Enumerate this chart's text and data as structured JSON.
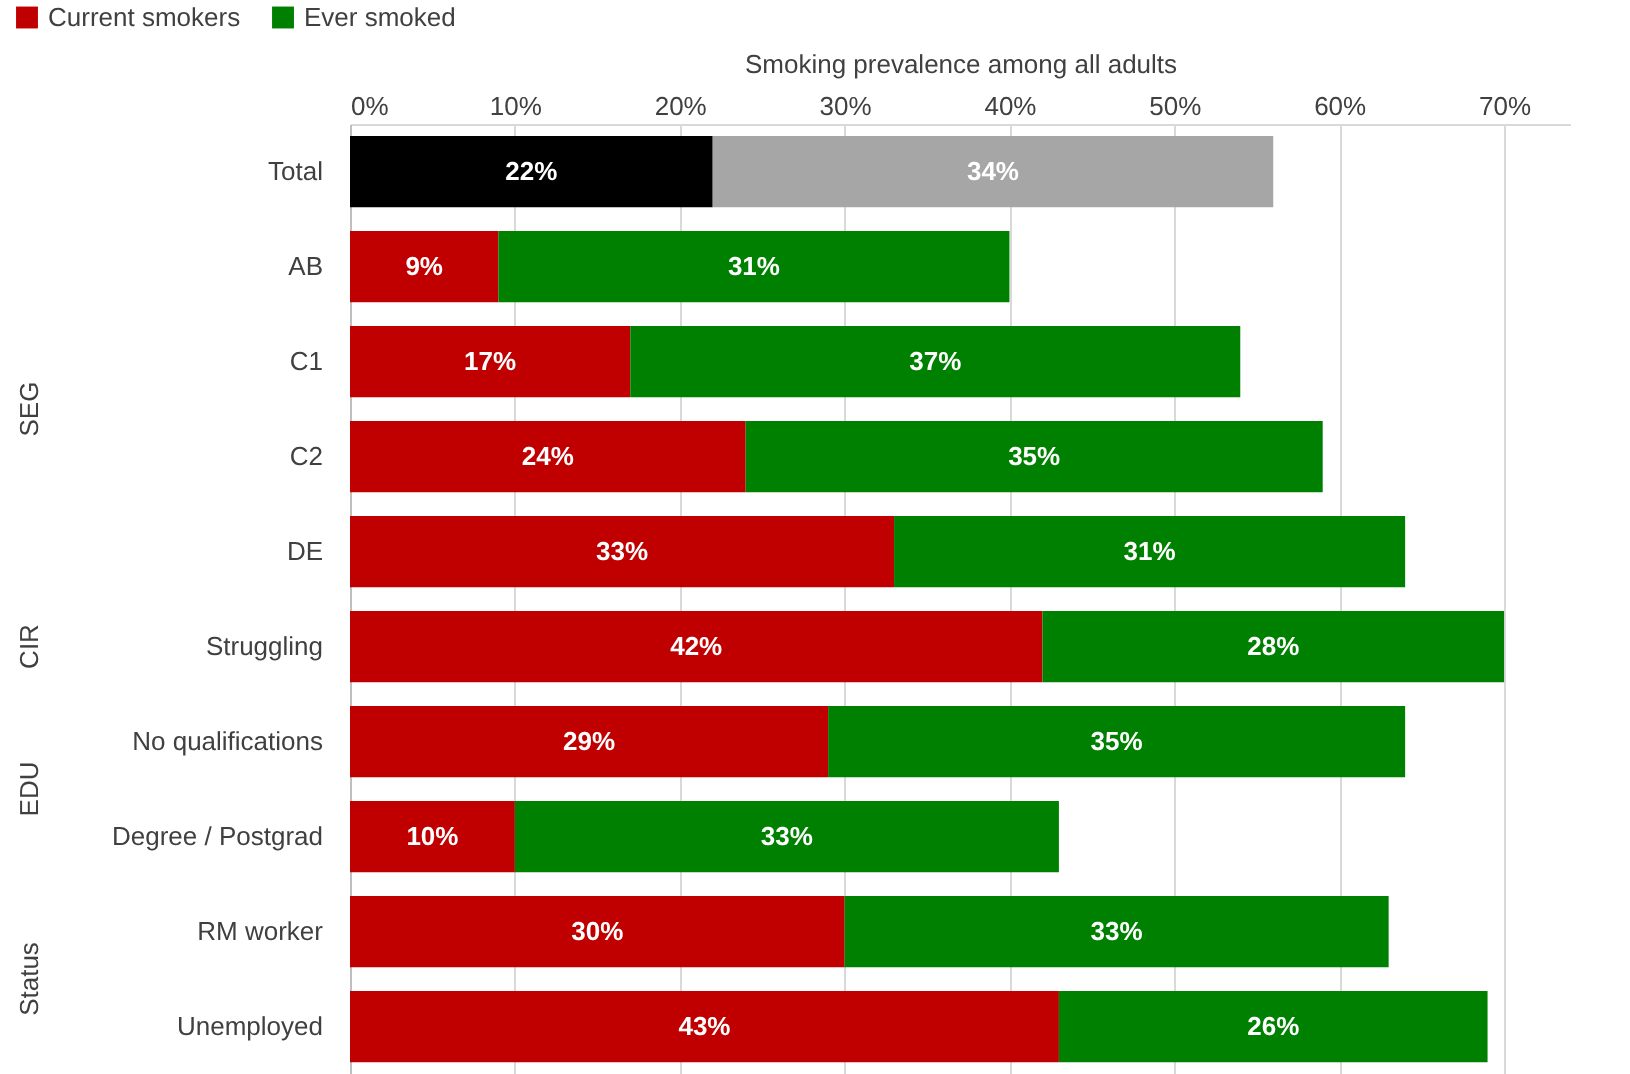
{
  "chart_data": {
    "type": "bar",
    "orientation": "horizontal",
    "stacked": true,
    "xlabel": "Smoking prevalence among all adults",
    "categories": [
      "Total",
      "AB",
      "C1",
      "C2",
      "DE",
      "Struggling",
      "No qualifications",
      "Degree / Postgrad",
      "RM worker",
      "Unemployed"
    ],
    "series": [
      {
        "name": "Current smokers",
        "color": "#c00000",
        "colors": [
          "#000000",
          "#c00000",
          "#c00000",
          "#c00000",
          "#c00000",
          "#c00000",
          "#c00000",
          "#c00000",
          "#c00000",
          "#c00000"
        ],
        "values": [
          22,
          9,
          17,
          24,
          33,
          42,
          29,
          10,
          30,
          43
        ],
        "value_labels": [
          "22%",
          "9%",
          "17%",
          "24%",
          "33%",
          "42%",
          "29%",
          "10%",
          "30%",
          "43%"
        ]
      },
      {
        "name": "Ever smoked",
        "color": "#008000",
        "colors": [
          "#a6a6a6",
          "#008000",
          "#008000",
          "#008000",
          "#008000",
          "#008000",
          "#008000",
          "#008000",
          "#008000",
          "#008000"
        ],
        "values": [
          34,
          31,
          37,
          35,
          31,
          28,
          35,
          33,
          33,
          26
        ],
        "value_labels": [
          "34%",
          "31%",
          "37%",
          "35%",
          "31%",
          "28%",
          "35%",
          "33%",
          "33%",
          "26%"
        ]
      }
    ],
    "xlim": [
      0,
      74
    ],
    "xticks": [
      {
        "value": 0,
        "label": "0%"
      },
      {
        "value": 10,
        "label": "10%"
      },
      {
        "value": 20,
        "label": "20%"
      },
      {
        "value": 30,
        "label": "30%"
      },
      {
        "value": 40,
        "label": "40%"
      },
      {
        "value": 50,
        "label": "50%"
      },
      {
        "value": 60,
        "label": "60%"
      },
      {
        "value": 70,
        "label": "70%"
      }
    ],
    "annotations": [
      "SEG",
      "CIR",
      "EDU",
      "Status"
    ],
    "grid": "x",
    "legend": "top left"
  }
}
